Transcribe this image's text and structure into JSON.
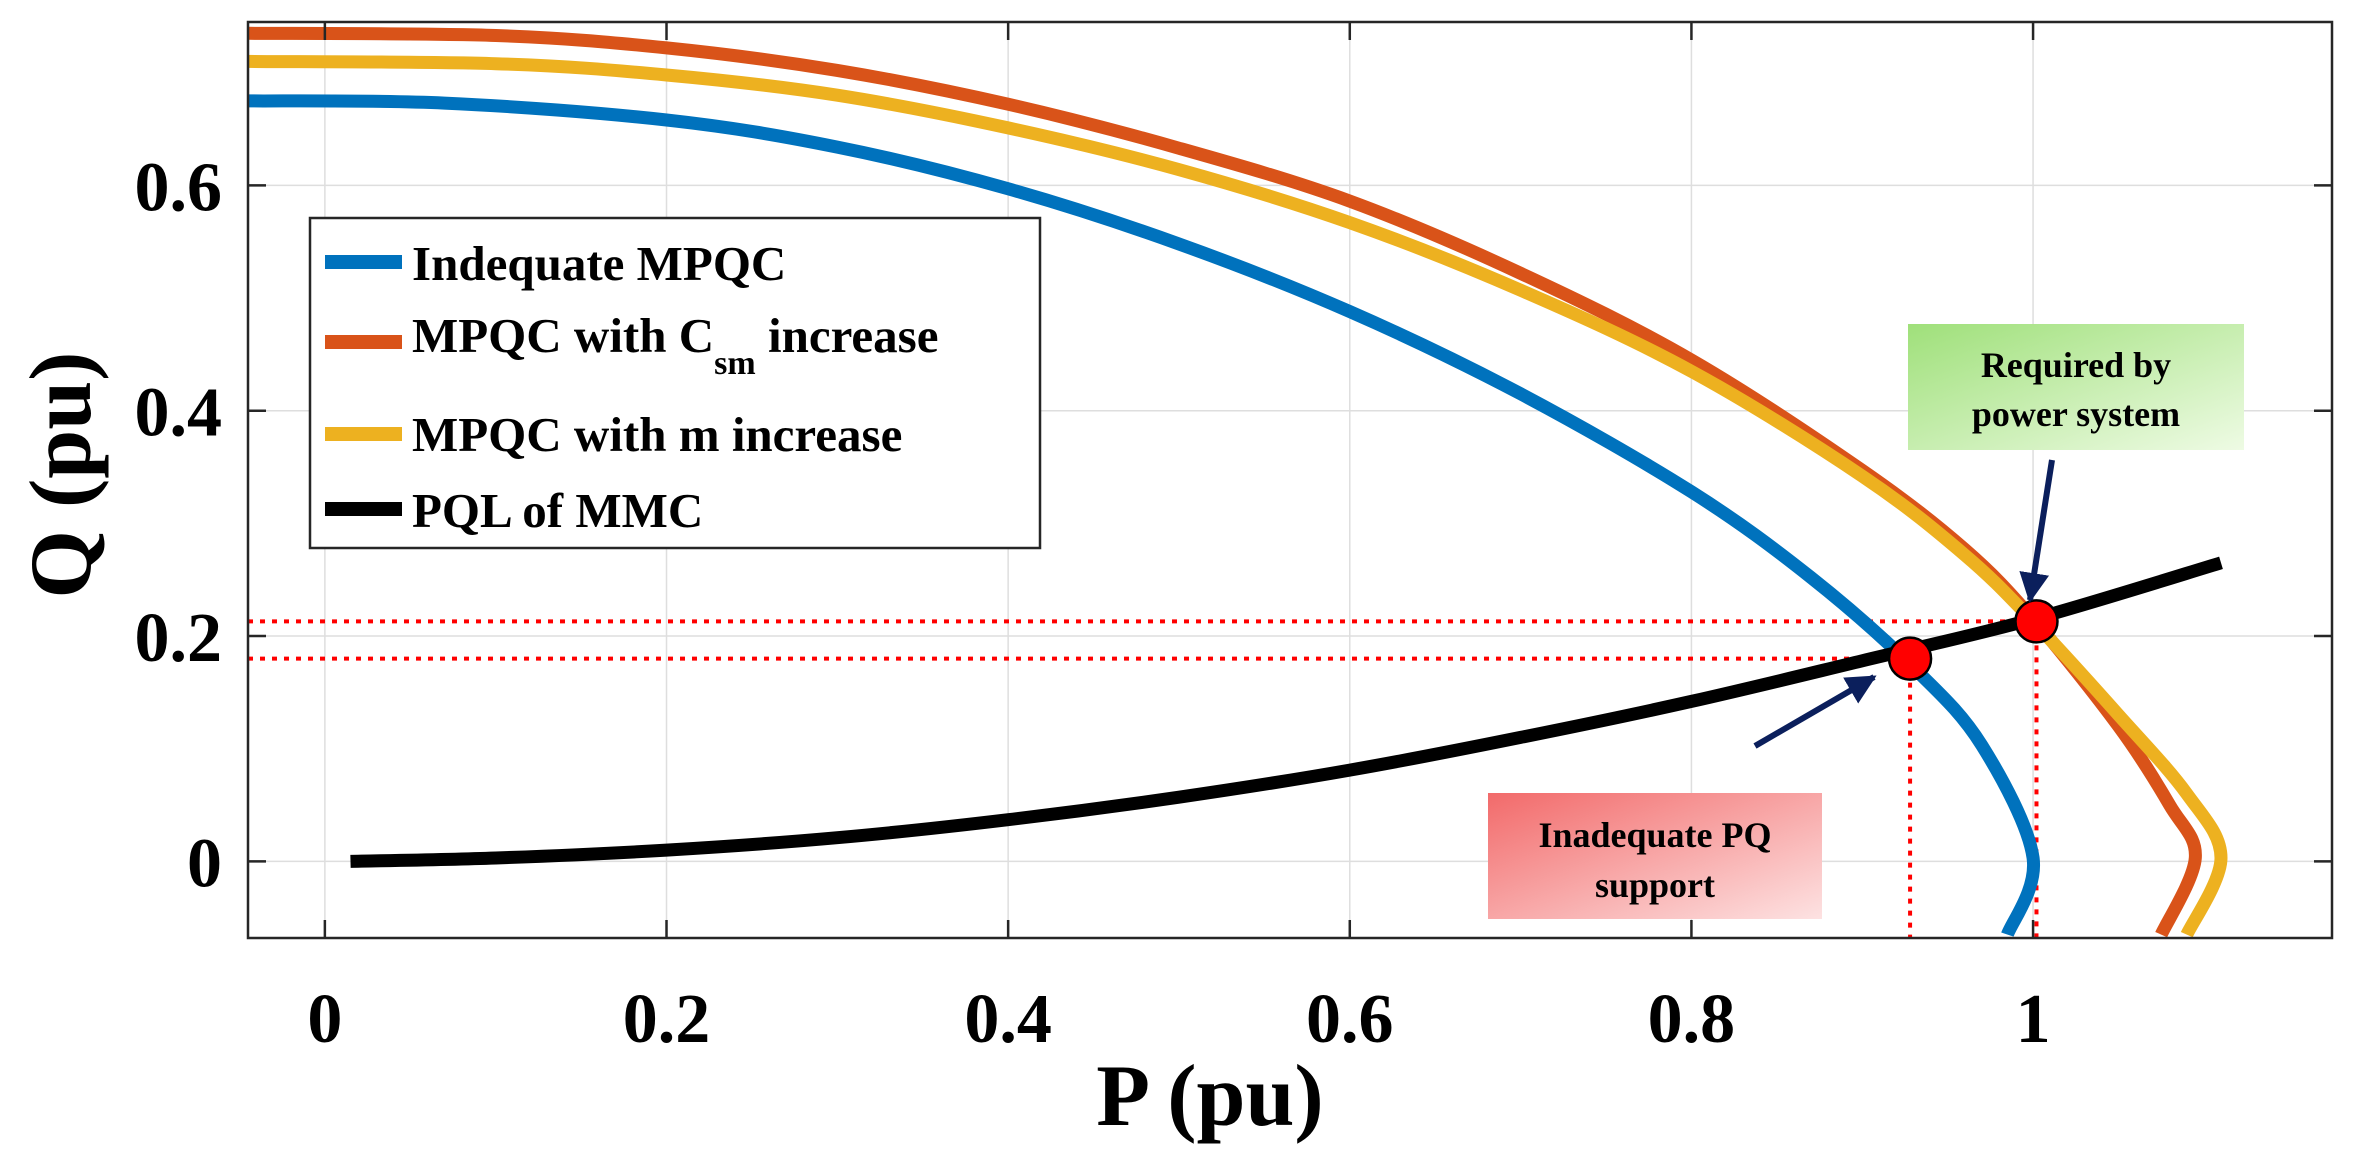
{
  "chart_data": {
    "type": "line",
    "xlabel": "P (pu)",
    "ylabel": "Q (pu)",
    "xlim": [
      -0.045,
      1.175
    ],
    "ylim": [
      -0.068,
      0.745
    ],
    "grid": true,
    "legend_position": "upper-left",
    "xticks": [
      0,
      0.2,
      0.4,
      0.6,
      0.8,
      1
    ],
    "xtick_labels": [
      "0",
      "0.2",
      "0.4",
      "0.6",
      "0.8",
      "1"
    ],
    "yticks": [
      0,
      0.2,
      0.4,
      0.6
    ],
    "ytick_labels": [
      "0",
      "0.2",
      "0.4",
      "0.6"
    ],
    "series": [
      {
        "name": "Indequate MPQC",
        "color": "#0072BD",
        "points": [
          [
            -0.045,
            0.675
          ],
          [
            0.07,
            0.673
          ],
          [
            0.2,
            0.658
          ],
          [
            0.3,
            0.634
          ],
          [
            0.4,
            0.597
          ],
          [
            0.5,
            0.548
          ],
          [
            0.6,
            0.488
          ],
          [
            0.7,
            0.415
          ],
          [
            0.8,
            0.328
          ],
          [
            0.87,
            0.252
          ],
          [
            0.93,
            0.172
          ],
          [
            0.97,
            0.103
          ],
          [
            1.0,
            0.003
          ],
          [
            0.985,
            -0.065
          ]
        ]
      },
      {
        "name": "MPQC with C_sm increase",
        "name_main": "MPQC with C",
        "name_sub": "sm",
        "name_tail": " increase",
        "color": "#D95319",
        "points": [
          [
            -0.045,
            0.735
          ],
          [
            0.1,
            0.733
          ],
          [
            0.2,
            0.722
          ],
          [
            0.3,
            0.702
          ],
          [
            0.4,
            0.672
          ],
          [
            0.5,
            0.633
          ],
          [
            0.6,
            0.586
          ],
          [
            0.7,
            0.522
          ],
          [
            0.8,
            0.445
          ],
          [
            0.9,
            0.347
          ],
          [
            0.96,
            0.277
          ],
          [
            1.0,
            0.215
          ],
          [
            1.05,
            0.12
          ],
          [
            1.08,
            0.05
          ],
          [
            1.095,
            0.003
          ],
          [
            1.075,
            -0.065
          ]
        ]
      },
      {
        "name": "MPQC with m increase",
        "color": "#EDB120",
        "points": [
          [
            -0.045,
            0.71
          ],
          [
            0.1,
            0.708
          ],
          [
            0.2,
            0.698
          ],
          [
            0.3,
            0.68
          ],
          [
            0.4,
            0.651
          ],
          [
            0.5,
            0.614
          ],
          [
            0.6,
            0.567
          ],
          [
            0.7,
            0.507
          ],
          [
            0.8,
            0.435
          ],
          [
            0.9,
            0.342
          ],
          [
            0.96,
            0.272
          ],
          [
            1.0,
            0.213
          ],
          [
            1.05,
            0.13
          ],
          [
            1.09,
            0.06
          ],
          [
            1.11,
            0.003
          ],
          [
            1.09,
            -0.065
          ]
        ]
      },
      {
        "name": "PQL of MMC",
        "color": "#000000",
        "points": [
          [
            0.015,
            0.0
          ],
          [
            0.1,
            0.003
          ],
          [
            0.2,
            0.01
          ],
          [
            0.3,
            0.021
          ],
          [
            0.4,
            0.037
          ],
          [
            0.5,
            0.057
          ],
          [
            0.6,
            0.081
          ],
          [
            0.7,
            0.11
          ],
          [
            0.8,
            0.142
          ],
          [
            0.9,
            0.178
          ],
          [
            1.0,
            0.215
          ],
          [
            1.11,
            0.265
          ]
        ]
      }
    ],
    "markers": [
      {
        "name": "inadequate-point",
        "x": 0.928,
        "y": 0.18,
        "color": "#FF0000"
      },
      {
        "name": "required-point",
        "x": 1.002,
        "y": 0.213,
        "color": "#FF0000"
      }
    ],
    "annotations": [
      {
        "name": "required",
        "lines": [
          "Required by",
          "power system"
        ],
        "fill": "#b8ee99"
      },
      {
        "name": "inadequate",
        "lines": [
          "Inadequate PQ",
          "support"
        ],
        "fill": "#f07a7a"
      }
    ]
  }
}
